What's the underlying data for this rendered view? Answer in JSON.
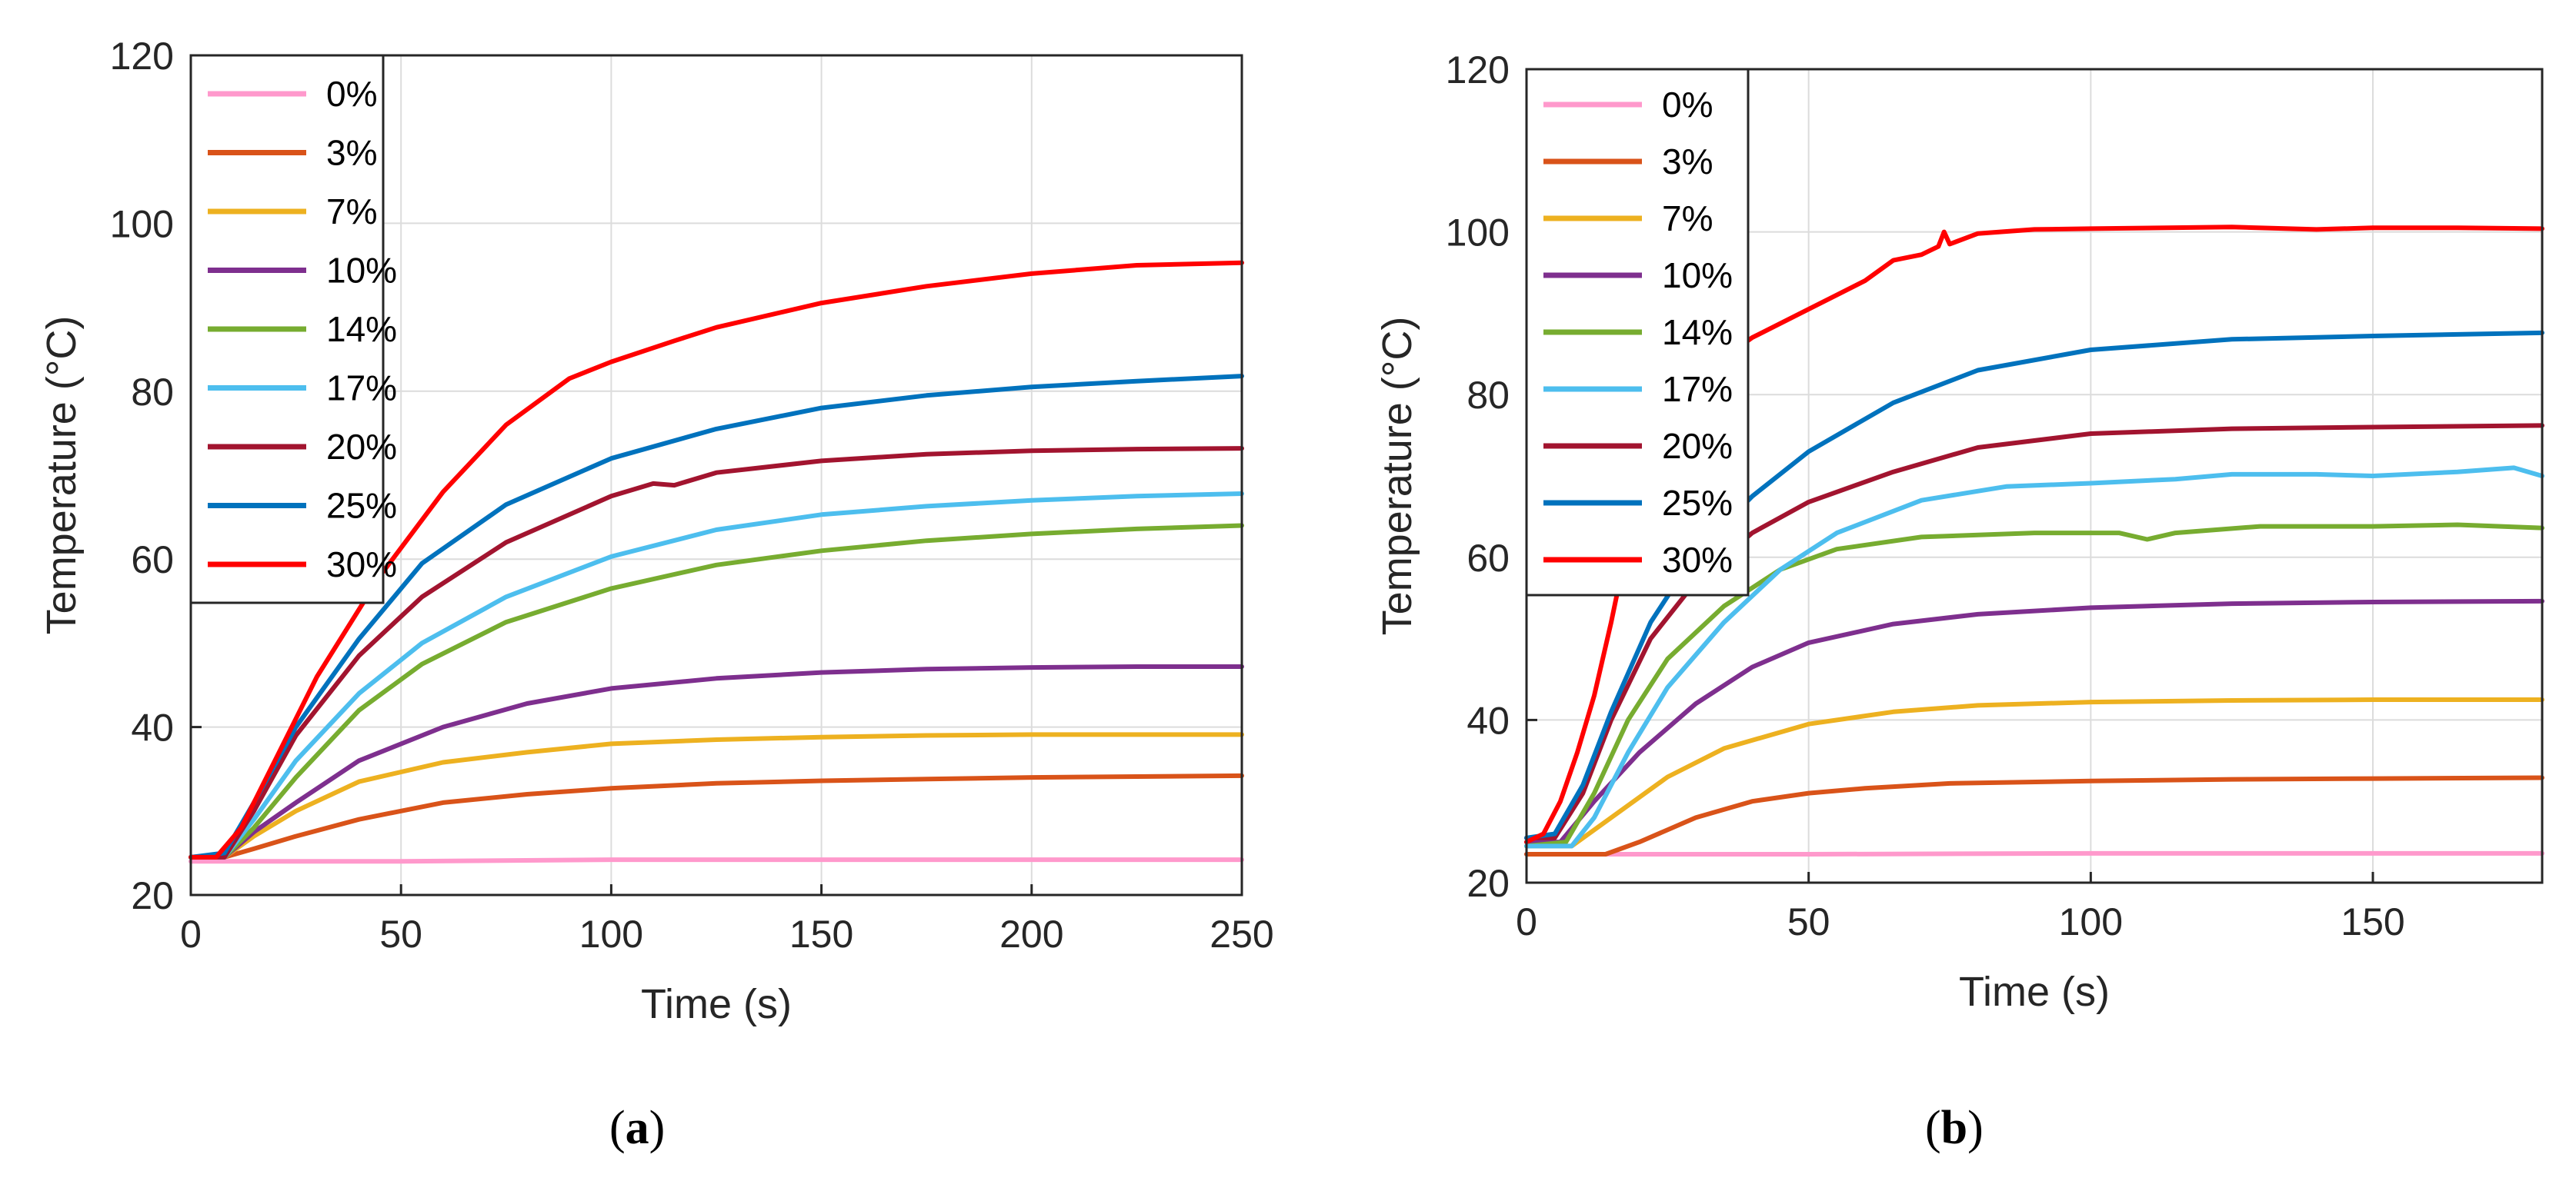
{
  "figure": {
    "captions": [
      "a",
      "b"
    ]
  },
  "chart_data": [
    {
      "type": "line",
      "panel": "a",
      "xlabel": "Time (s)",
      "ylabel": "Temperature (°C)",
      "xlim": [
        0,
        250
      ],
      "ylim": [
        20,
        120
      ],
      "xticks": [
        0,
        50,
        100,
        150,
        200,
        250
      ],
      "yticks": [
        20,
        40,
        60,
        80,
        100,
        120
      ],
      "grid": true,
      "legend_position": "top-left",
      "series": [
        {
          "name": "0%",
          "color": "#FF99CC",
          "points": [
            [
              0,
              24
            ],
            [
              10,
              24
            ],
            [
              50,
              24
            ],
            [
              100,
              24.2
            ],
            [
              150,
              24.2
            ],
            [
              200,
              24.2
            ],
            [
              250,
              24.2
            ]
          ]
        },
        {
          "name": "3%",
          "color": "#D95319",
          "points": [
            [
              0,
              24.5
            ],
            [
              8,
              24.5
            ],
            [
              15,
              25.5
            ],
            [
              25,
              27
            ],
            [
              40,
              29
            ],
            [
              60,
              31
            ],
            [
              80,
              32
            ],
            [
              100,
              32.7
            ],
            [
              125,
              33.3
            ],
            [
              150,
              33.6
            ],
            [
              175,
              33.8
            ],
            [
              200,
              34
            ],
            [
              225,
              34.1
            ],
            [
              250,
              34.2
            ]
          ]
        },
        {
          "name": "7%",
          "color": "#EDB120",
          "points": [
            [
              0,
              24.5
            ],
            [
              8,
              24.5
            ],
            [
              15,
              27
            ],
            [
              25,
              30
            ],
            [
              40,
              33.5
            ],
            [
              60,
              35.8
            ],
            [
              80,
              37
            ],
            [
              100,
              38
            ],
            [
              125,
              38.5
            ],
            [
              150,
              38.8
            ],
            [
              175,
              39
            ],
            [
              200,
              39.1
            ],
            [
              225,
              39.1
            ],
            [
              250,
              39.1
            ]
          ]
        },
        {
          "name": "10%",
          "color": "#7E2F8E",
          "points": [
            [
              0,
              24.5
            ],
            [
              8,
              24.5
            ],
            [
              15,
              27.5
            ],
            [
              25,
              31
            ],
            [
              40,
              36
            ],
            [
              60,
              40
            ],
            [
              80,
              42.8
            ],
            [
              100,
              44.6
            ],
            [
              125,
              45.8
            ],
            [
              150,
              46.5
            ],
            [
              175,
              46.9
            ],
            [
              200,
              47.1
            ],
            [
              225,
              47.2
            ],
            [
              250,
              47.2
            ]
          ]
        },
        {
          "name": "14%",
          "color": "#77AC30",
          "points": [
            [
              0,
              24.5
            ],
            [
              8,
              24.5
            ],
            [
              15,
              28
            ],
            [
              25,
              34
            ],
            [
              40,
              42
            ],
            [
              55,
              47.5
            ],
            [
              75,
              52.5
            ],
            [
              100,
              56.5
            ],
            [
              125,
              59.3
            ],
            [
              150,
              61
            ],
            [
              175,
              62.2
            ],
            [
              200,
              63
            ],
            [
              225,
              63.6
            ],
            [
              250,
              64
            ]
          ]
        },
        {
          "name": "17%",
          "color": "#4DBEEE",
          "points": [
            [
              0,
              24.5
            ],
            [
              8,
              24.5
            ],
            [
              15,
              29
            ],
            [
              25,
              36
            ],
            [
              40,
              44
            ],
            [
              55,
              50
            ],
            [
              75,
              55.5
            ],
            [
              100,
              60.3
            ],
            [
              125,
              63.5
            ],
            [
              150,
              65.3
            ],
            [
              175,
              66.3
            ],
            [
              200,
              67
            ],
            [
              225,
              67.5
            ],
            [
              250,
              67.8
            ]
          ]
        },
        {
          "name": "20%",
          "color": "#A2142F",
          "points": [
            [
              0,
              24.5
            ],
            [
              8,
              24.5
            ],
            [
              15,
              30
            ],
            [
              25,
              39
            ],
            [
              40,
              48.5
            ],
            [
              55,
              55.5
            ],
            [
              75,
              62
            ],
            [
              100,
              67.5
            ],
            [
              110,
              69
            ],
            [
              115,
              68.8
            ],
            [
              125,
              70.3
            ],
            [
              150,
              71.7
            ],
            [
              175,
              72.5
            ],
            [
              200,
              72.9
            ],
            [
              225,
              73.1
            ],
            [
              250,
              73.2
            ]
          ]
        },
        {
          "name": "25%",
          "color": "#0072BD",
          "points": [
            [
              0,
              24.5
            ],
            [
              8,
              25
            ],
            [
              15,
              31
            ],
            [
              25,
              40
            ],
            [
              40,
              50.5
            ],
            [
              55,
              59.5
            ],
            [
              75,
              66.5
            ],
            [
              100,
              72
            ],
            [
              125,
              75.5
            ],
            [
              150,
              78
            ],
            [
              175,
              79.5
            ],
            [
              200,
              80.5
            ],
            [
              225,
              81.2
            ],
            [
              250,
              81.8
            ]
          ]
        },
        {
          "name": "30%",
          "color": "#FF0000",
          "points": [
            [
              0,
              24.5
            ],
            [
              6,
              24.5
            ],
            [
              12,
              28
            ],
            [
              20,
              36
            ],
            [
              30,
              46
            ],
            [
              45,
              58
            ],
            [
              60,
              68
            ],
            [
              75,
              76
            ],
            [
              90,
              81.5
            ],
            [
              100,
              83.5
            ],
            [
              115,
              86
            ],
            [
              125,
              87.6
            ],
            [
              150,
              90.5
            ],
            [
              175,
              92.5
            ],
            [
              200,
              94
            ],
            [
              225,
              95
            ],
            [
              250,
              95.3
            ]
          ]
        }
      ]
    },
    {
      "type": "line",
      "panel": "b",
      "xlabel": "Time (s)",
      "ylabel": "Temperature (°C)",
      "xlim": [
        0,
        180
      ],
      "ylim": [
        20,
        120
      ],
      "xticks": [
        0,
        50,
        100,
        150
      ],
      "yticks": [
        20,
        40,
        60,
        80,
        100,
        120
      ],
      "grid": true,
      "legend_position": "top-left",
      "series": [
        {
          "name": "0%",
          "color": "#FF99CC",
          "points": [
            [
              0,
              23.5
            ],
            [
              50,
              23.5
            ],
            [
              100,
              23.6
            ],
            [
              150,
              23.6
            ],
            [
              180,
              23.6
            ]
          ]
        },
        {
          "name": "3%",
          "color": "#D95319",
          "points": [
            [
              0,
              23.5
            ],
            [
              14,
              23.5
            ],
            [
              20,
              25
            ],
            [
              30,
              28
            ],
            [
              40,
              30
            ],
            [
              50,
              31
            ],
            [
              60,
              31.6
            ],
            [
              75,
              32.2
            ],
            [
              100,
              32.5
            ],
            [
              125,
              32.7
            ],
            [
              150,
              32.8
            ],
            [
              180,
              32.9
            ]
          ]
        },
        {
          "name": "7%",
          "color": "#EDB120",
          "points": [
            [
              0,
              24.5
            ],
            [
              8,
              24.5
            ],
            [
              15,
              28
            ],
            [
              25,
              33
            ],
            [
              35,
              36.5
            ],
            [
              50,
              39.5
            ],
            [
              65,
              41
            ],
            [
              80,
              41.8
            ],
            [
              100,
              42.2
            ],
            [
              125,
              42.4
            ],
            [
              150,
              42.5
            ],
            [
              180,
              42.5
            ]
          ]
        },
        {
          "name": "10%",
          "color": "#7E2F8E",
          "points": [
            [
              0,
              25
            ],
            [
              6,
              25
            ],
            [
              12,
              30
            ],
            [
              20,
              36
            ],
            [
              30,
              42
            ],
            [
              40,
              46.5
            ],
            [
              50,
              49.5
            ],
            [
              65,
              51.8
            ],
            [
              80,
              53
            ],
            [
              100,
              53.8
            ],
            [
              125,
              54.3
            ],
            [
              150,
              54.5
            ],
            [
              180,
              54.6
            ]
          ]
        },
        {
          "name": "14%",
          "color": "#77AC30",
          "points": [
            [
              0,
              24.5
            ],
            [
              7,
              25
            ],
            [
              12,
              31
            ],
            [
              18,
              40
            ],
            [
              25,
              47.5
            ],
            [
              35,
              54
            ],
            [
              45,
              58.5
            ],
            [
              55,
              61
            ],
            [
              70,
              62.5
            ],
            [
              90,
              63
            ],
            [
              105,
              63
            ],
            [
              110,
              62.2
            ],
            [
              115,
              63
            ],
            [
              130,
              63.8
            ],
            [
              150,
              63.8
            ],
            [
              165,
              64
            ],
            [
              180,
              63.6
            ]
          ]
        },
        {
          "name": "17%",
          "color": "#4DBEEE",
          "points": [
            [
              0,
              24.5
            ],
            [
              8,
              24.5
            ],
            [
              12,
              28
            ],
            [
              18,
              36
            ],
            [
              25,
              44
            ],
            [
              35,
              52
            ],
            [
              45,
              58.5
            ],
            [
              55,
              63
            ],
            [
              70,
              67
            ],
            [
              85,
              68.7
            ],
            [
              100,
              69.1
            ],
            [
              115,
              69.6
            ],
            [
              125,
              70.2
            ],
            [
              140,
              70.2
            ],
            [
              150,
              70
            ],
            [
              165,
              70.5
            ],
            [
              175,
              71
            ],
            [
              180,
              70
            ]
          ]
        },
        {
          "name": "20%",
          "color": "#A2142F",
          "points": [
            [
              0,
              25.5
            ],
            [
              5,
              25.5
            ],
            [
              10,
              31
            ],
            [
              15,
              40
            ],
            [
              22,
              50
            ],
            [
              30,
              57
            ],
            [
              40,
              63
            ],
            [
              50,
              66.8
            ],
            [
              65,
              70.5
            ],
            [
              80,
              73.5
            ],
            [
              100,
              75.2
            ],
            [
              125,
              75.8
            ],
            [
              150,
              76
            ],
            [
              180,
              76.2
            ]
          ]
        },
        {
          "name": "25%",
          "color": "#0072BD",
          "points": [
            [
              0,
              25.5
            ],
            [
              5,
              26
            ],
            [
              10,
              32
            ],
            [
              15,
              41
            ],
            [
              22,
              52
            ],
            [
              30,
              60.5
            ],
            [
              40,
              67.5
            ],
            [
              50,
              73
            ],
            [
              65,
              79
            ],
            [
              80,
              83
            ],
            [
              100,
              85.5
            ],
            [
              125,
              86.8
            ],
            [
              150,
              87.2
            ],
            [
              180,
              87.6
            ]
          ]
        },
        {
          "name": "30%",
          "color": "#FF0000",
          "points": [
            [
              0,
              25
            ],
            [
              3,
              26
            ],
            [
              6,
              30
            ],
            [
              9,
              36
            ],
            [
              12,
              43
            ],
            [
              15,
              52
            ],
            [
              18,
              62
            ],
            [
              21,
              70
            ],
            [
              25,
              77
            ],
            [
              30,
              82
            ],
            [
              40,
              87
            ],
            [
              50,
              90.5
            ],
            [
              60,
              94
            ],
            [
              65,
              96.5
            ],
            [
              70,
              97.2
            ],
            [
              73,
              98.2
            ],
            [
              74,
              100
            ],
            [
              75,
              98.5
            ],
            [
              80,
              99.8
            ],
            [
              90,
              100.3
            ],
            [
              100,
              100.4
            ],
            [
              125,
              100.6
            ],
            [
              140,
              100.3
            ],
            [
              150,
              100.5
            ],
            [
              165,
              100.5
            ],
            [
              180,
              100.4
            ]
          ]
        }
      ]
    }
  ]
}
